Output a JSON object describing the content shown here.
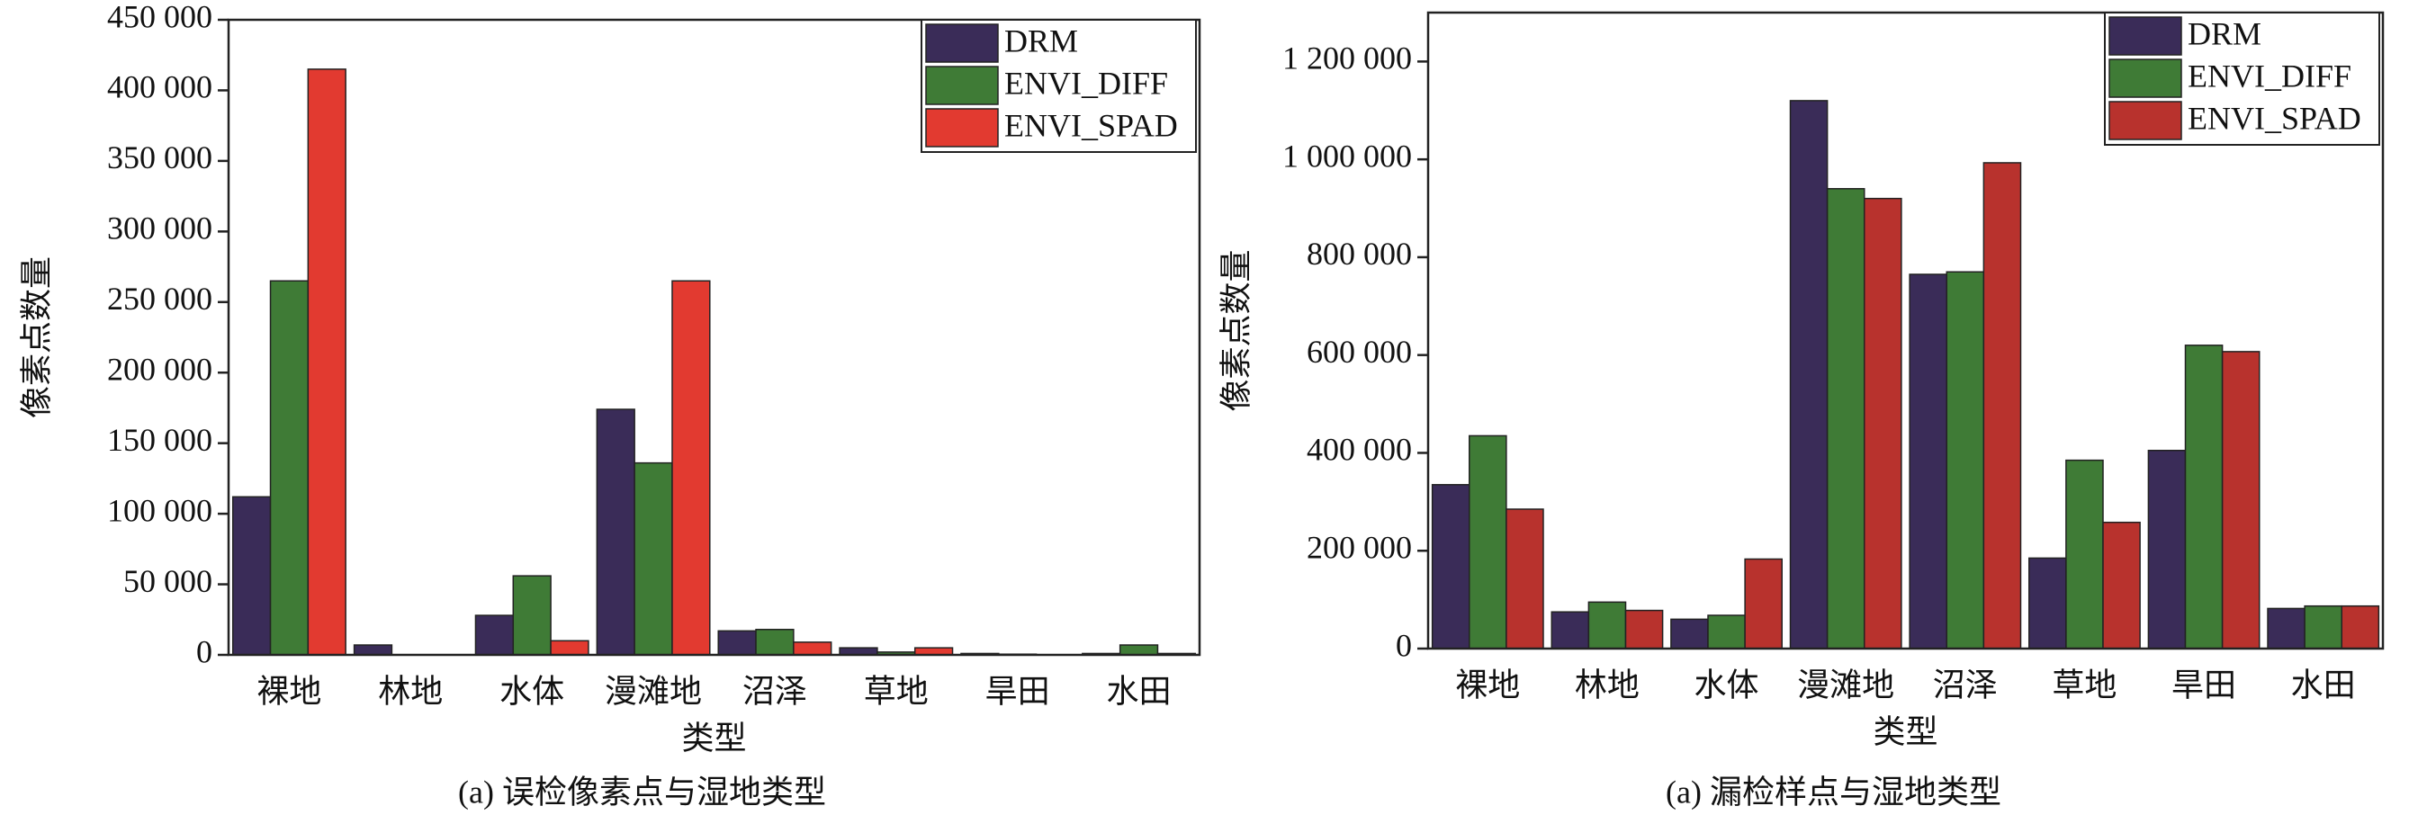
{
  "chart_data": [
    {
      "type": "bar",
      "caption": "(a) 误检像素点与湿地类型",
      "x_label": "类型",
      "y_label": "像素点数量",
      "categories": [
        "裸地",
        "林地",
        "水体",
        "漫滩地",
        "沼泽",
        "草地",
        "旱田",
        "水田"
      ],
      "series": [
        {
          "name": "DRM",
          "color": "#3a2c58",
          "values": [
            112000,
            7000,
            28000,
            174000,
            17000,
            5000,
            1000,
            1000
          ]
        },
        {
          "name": "ENVI_DIFF",
          "color": "#3f7b36",
          "values": [
            265000,
            0,
            56000,
            136000,
            18000,
            2000,
            500,
            7000
          ]
        },
        {
          "name": "ENVI_SPAD",
          "color": "#e23a30",
          "values": [
            415000,
            0,
            10000,
            265000,
            9000,
            5000,
            0,
            1000
          ]
        }
      ],
      "ylim": [
        0,
        450000
      ],
      "yticks": [
        0,
        {
          "value": 50000,
          "label": "50 000"
        },
        {
          "value": 100000,
          "label": "100 000"
        },
        {
          "value": 150000,
          "label": "150 000"
        },
        {
          "value": 200000,
          "label": "200 000"
        },
        {
          "value": 250000,
          "label": "250 000"
        },
        {
          "value": 300000,
          "label": "300 000"
        },
        {
          "value": 350000,
          "label": "350 000"
        },
        {
          "value": 400000,
          "label": "400 000"
        },
        {
          "value": 450000,
          "label": "450 000"
        }
      ],
      "legend": "upper right"
    },
    {
      "type": "bar",
      "caption": "(a) 漏检样点与湿地类型",
      "x_label": "类型",
      "y_label": "像素点数量",
      "categories": [
        "裸地",
        "林地",
        "水体",
        "漫滩地",
        "沼泽",
        "草地",
        "旱田",
        "水田"
      ],
      "series": [
        {
          "name": "DRM",
          "color": "#3a2c58",
          "values": [
            335000,
            75000,
            60000,
            1120000,
            765000,
            185000,
            405000,
            82000
          ]
        },
        {
          "name": "ENVI_DIFF",
          "color": "#3f7b36",
          "values": [
            435000,
            95000,
            68000,
            940000,
            770000,
            385000,
            620000,
            87000
          ]
        },
        {
          "name": "ENVI_SPAD",
          "color": "#b8322d",
          "values": [
            285000,
            78000,
            183000,
            920000,
            993000,
            258000,
            607000,
            87000
          ]
        }
      ],
      "ylim": [
        0,
        1300000
      ],
      "yticks": [
        0,
        {
          "value": 200000,
          "label": "200 000"
        },
        {
          "value": 400000,
          "label": "400 000"
        },
        {
          "value": 600000,
          "label": "600 000"
        },
        {
          "value": 800000,
          "label": "800 000"
        },
        {
          "value": 1000000,
          "label": "1 000 000"
        },
        {
          "value": 1200000,
          "label": "1 200 000"
        }
      ],
      "legend": "upper right"
    }
  ]
}
